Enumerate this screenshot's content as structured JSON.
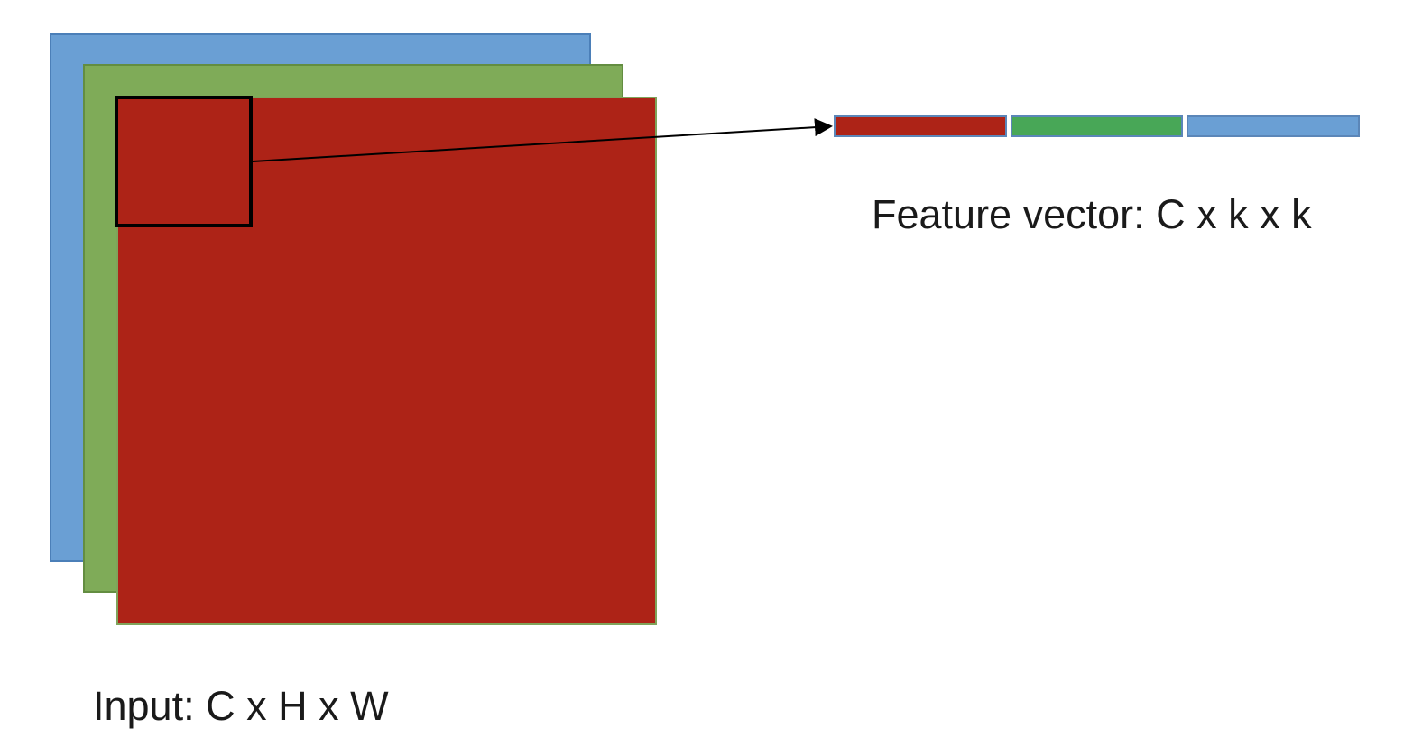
{
  "colors": {
    "channel_blue": "#6a9fd4",
    "channel_blue_border": "#4b7fb8",
    "channel_green": "#7fab58",
    "channel_green_border": "#638d41",
    "channel_red": "#ad2317",
    "channel_red_border": "#7fa35a",
    "arrow": "#000000",
    "vector_red": "#ad2317",
    "vector_green": "#48a757",
    "vector_blue": "#6a9fd4",
    "vector_border": "#5b86b8"
  },
  "input_stack": {
    "layers": [
      {
        "name": "blue-channel"
      },
      {
        "name": "green-channel"
      },
      {
        "name": "red-channel"
      }
    ],
    "caption": "Input: C x H x W"
  },
  "feature_vector": {
    "segments": [
      {
        "name": "red"
      },
      {
        "name": "green"
      },
      {
        "name": "blue"
      }
    ],
    "caption": "Feature vector: C x k x k"
  }
}
